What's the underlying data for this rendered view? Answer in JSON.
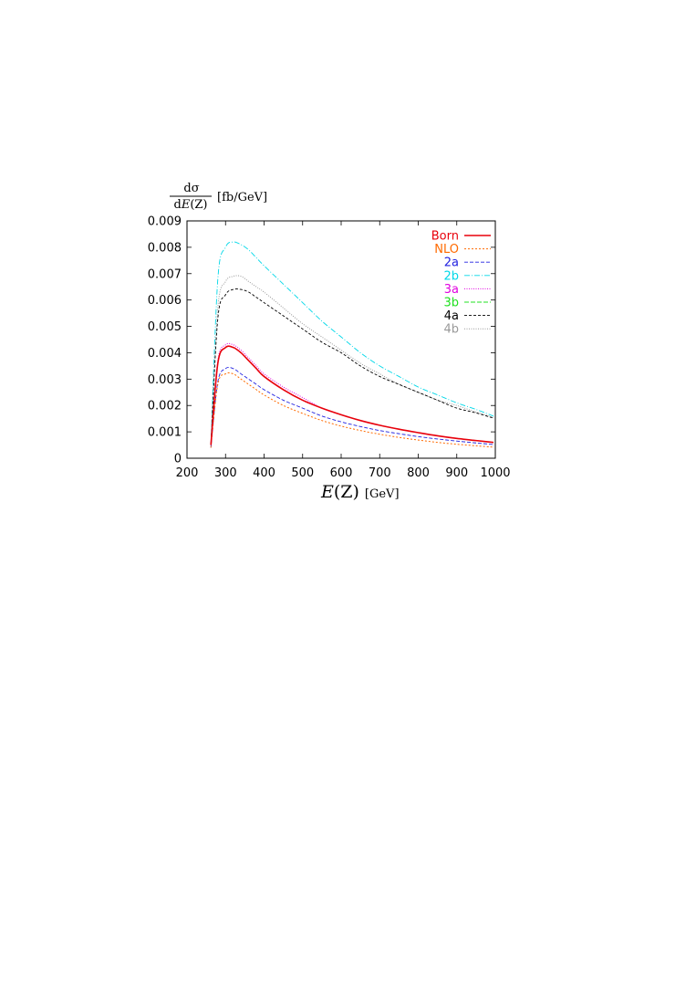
{
  "chart_data": {
    "type": "line",
    "ylabel": {
      "numerator": "dσ",
      "denominator_prefix": "d",
      "denominator_var": "E",
      "denominator_arg": "(Z)",
      "unit": "[fb/GeV]"
    },
    "xlabel": {
      "var": "E",
      "arg": "(Z)",
      "unit": "[GeV]"
    },
    "xlim": [
      200,
      1000
    ],
    "ylim": [
      0,
      0.009
    ],
    "xticks": [
      200,
      300,
      400,
      500,
      600,
      700,
      800,
      900,
      1000
    ],
    "xtick_labels": [
      "200",
      "300",
      "400",
      "500",
      "600",
      "700",
      "800",
      "900",
      "1000"
    ],
    "yticks": [
      0,
      0.001,
      0.002,
      0.003,
      0.004,
      0.005,
      0.006,
      0.007,
      0.008,
      0.009
    ],
    "ytick_labels": [
      "0",
      "0.001",
      "0.002",
      "0.003",
      "0.004",
      "0.005",
      "0.006",
      "0.007",
      "0.008",
      "0.009"
    ],
    "grid": false,
    "legend_position": "top-right",
    "x": [
      262,
      280,
      300,
      320,
      340,
      360,
      380,
      400,
      450,
      500,
      550,
      600,
      650,
      700,
      750,
      800,
      850,
      900,
      950,
      995
    ],
    "series": [
      {
        "name": "Born",
        "color": "#e8000b",
        "dash": "solid",
        "width": 1.6,
        "values": [
          0.0005,
          0.0036,
          0.0042,
          0.0042,
          0.004,
          0.0037,
          0.0034,
          0.0031,
          0.0026,
          0.0022,
          0.0019,
          0.00165,
          0.00143,
          0.00125,
          0.0011,
          0.00097,
          0.00085,
          0.00075,
          0.00067,
          0.0006
        ]
      },
      {
        "name": "NLO",
        "color": "#ff6a00",
        "dash": "2,2",
        "width": 1.0,
        "values": [
          0.0004,
          0.0028,
          0.0032,
          0.0032,
          0.003,
          0.0028,
          0.0026,
          0.0024,
          0.002,
          0.0017,
          0.00143,
          0.00122,
          0.00105,
          0.00091,
          0.00079,
          0.00069,
          0.0006,
          0.00053,
          0.00047,
          0.00042
        ]
      },
      {
        "name": "2a",
        "color": "#2020e0",
        "dash": "4,2",
        "width": 0.9,
        "values": [
          0.0004,
          0.0029,
          0.0034,
          0.0034,
          0.0032,
          0.003,
          0.0028,
          0.0026,
          0.0022,
          0.0019,
          0.0016,
          0.00138,
          0.0012,
          0.00105,
          0.00093,
          0.00082,
          0.00073,
          0.00065,
          0.00058,
          0.00052
        ]
      },
      {
        "name": "2b",
        "color": "#00d8e8",
        "dash": "6,2,1,2",
        "width": 0.9,
        "values": [
          0.0005,
          0.0068,
          0.008,
          0.0082,
          0.0081,
          0.0079,
          0.0076,
          0.0073,
          0.0066,
          0.0059,
          0.0052,
          0.0046,
          0.004,
          0.0035,
          0.0031,
          0.0027,
          0.0024,
          0.0021,
          0.00185,
          0.0016
        ]
      },
      {
        "name": "3a",
        "color": "#e000e0",
        "dash": "1,1.5",
        "width": 1.0,
        "values": [
          0.0005,
          0.0037,
          0.0043,
          0.0043,
          0.0041,
          0.0038,
          0.0035,
          0.0032,
          0.0027,
          0.0023,
          0.0019,
          0.00165,
          0.00143,
          0.00125,
          0.0011,
          0.00097,
          0.00085,
          0.00075,
          0.00067,
          0.0006
        ]
      },
      {
        "name": "3b",
        "color": "#20e020",
        "dash": "5,2",
        "width": 0.9,
        "values": [
          0.0005,
          0.0036,
          0.0042,
          0.0042,
          0.004,
          0.0037,
          0.0034,
          0.0031,
          0.0026,
          0.0022,
          0.0019,
          0.00165,
          0.00143,
          0.00125,
          0.0011,
          0.00097,
          0.00085,
          0.00075,
          0.00067,
          0.0006
        ]
      },
      {
        "name": "4a",
        "color": "#000000",
        "dash": "3,2",
        "width": 0.9,
        "values": [
          0.0005,
          0.0053,
          0.0062,
          0.0064,
          0.0064,
          0.0063,
          0.0061,
          0.0059,
          0.0054,
          0.0049,
          0.0044,
          0.004,
          0.0035,
          0.0031,
          0.0028,
          0.0025,
          0.0022,
          0.0019,
          0.00172,
          0.00152
        ]
      },
      {
        "name": "4b",
        "color": "#999999",
        "dash": "1,1.5",
        "width": 1.0,
        "values": [
          0.0005,
          0.0057,
          0.0067,
          0.0069,
          0.0069,
          0.0067,
          0.0065,
          0.0063,
          0.0057,
          0.0051,
          0.0046,
          0.0041,
          0.0036,
          0.0032,
          0.0028,
          0.0025,
          0.0022,
          0.002,
          0.00175,
          0.00155
        ]
      }
    ]
  }
}
